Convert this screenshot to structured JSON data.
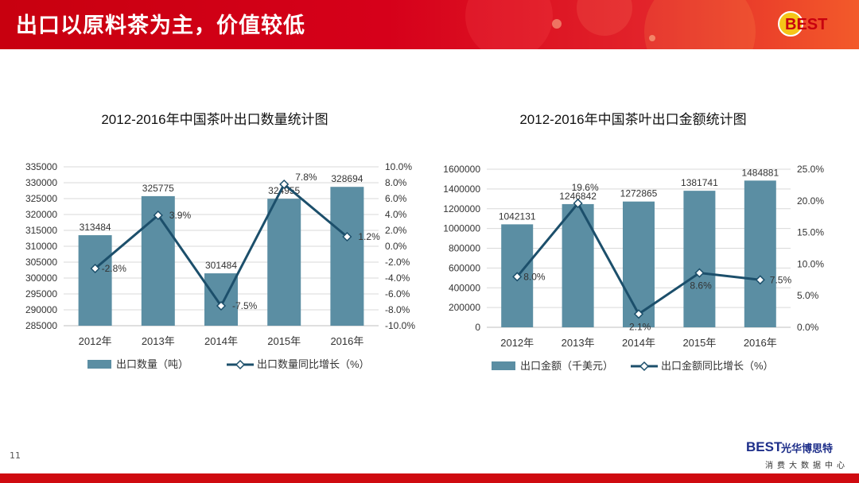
{
  "header": {
    "title": "出口以原料茶为主，价值较低",
    "logo_text": "BEST"
  },
  "page_number": "11",
  "brand": {
    "logo": "BEST",
    "name": "光华博思特",
    "tagline": "消费大数据中心"
  },
  "chart_data": [
    {
      "type": "bar+line",
      "title": "2012-2016年中国茶叶出口数量统计图",
      "categories": [
        "2012年",
        "2013年",
        "2014年",
        "2015年",
        "2016年"
      ],
      "series": [
        {
          "name": "出口数量（吨）",
          "type": "bar",
          "axis": "left",
          "values": [
            313484,
            325775,
            301484,
            324955,
            328694
          ],
          "labels": [
            "313484",
            "325775",
            "301484",
            "324955",
            "328694"
          ],
          "color": "#5b8ea3"
        },
        {
          "name": "出口数量同比增长（%）",
          "type": "line",
          "axis": "right",
          "values": [
            -2.8,
            3.9,
            -7.5,
            7.8,
            1.2
          ],
          "labels": [
            "-2.8%",
            "3.9%",
            "-7.5%",
            "7.8%",
            "1.2%"
          ],
          "color": "#1c4f6b"
        }
      ],
      "ylim_left": [
        285000,
        335000
      ],
      "yticks_left": [
        "285000",
        "290000",
        "295000",
        "300000",
        "305000",
        "310000",
        "315000",
        "320000",
        "325000",
        "330000",
        "335000"
      ],
      "ylim_right": [
        -10,
        10
      ],
      "yticks_right": [
        "-10.0%",
        "-8.0%",
        "-6.0%",
        "-4.0%",
        "-2.0%",
        "0.0%",
        "2.0%",
        "4.0%",
        "6.0%",
        "8.0%",
        "10.0%"
      ],
      "grid": true,
      "legend_position": "bottom"
    },
    {
      "type": "bar+line",
      "title": "2012-2016年中国茶叶出口金额统计图",
      "categories": [
        "2012年",
        "2013年",
        "2014年",
        "2015年",
        "2016年"
      ],
      "series": [
        {
          "name": "出口金额（千美元）",
          "type": "bar",
          "axis": "left",
          "values": [
            1042131,
            1246842,
            1272865,
            1381741,
            1484881
          ],
          "labels": [
            "1042131",
            "1246842",
            "1272865",
            "1381741",
            "1484881"
          ],
          "color": "#5b8ea3"
        },
        {
          "name": "出口金额同比增长（%）",
          "type": "line",
          "axis": "right",
          "values": [
            8.0,
            19.6,
            2.1,
            8.6,
            7.5
          ],
          "labels": [
            "8.0%",
            "19.6%",
            "2.1%",
            "8.6%",
            "7.5%"
          ],
          "color": "#1c4f6b"
        }
      ],
      "ylim_left": [
        0,
        1600000
      ],
      "yticks_left": [
        "0",
        "200000",
        "400000",
        "600000",
        "800000",
        "1000000",
        "1200000",
        "1400000",
        "1600000"
      ],
      "ylim_right": [
        0,
        25
      ],
      "yticks_right": [
        "0.0%",
        "5.0%",
        "10.0%",
        "15.0%",
        "20.0%",
        "25.0%"
      ],
      "grid": true,
      "legend_position": "bottom"
    }
  ]
}
